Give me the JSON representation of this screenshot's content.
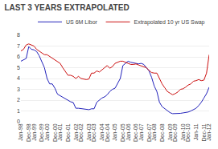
{
  "chart_data": {
    "type": "line",
    "title": "LAST 3 YEARS EXTRAPOLATED",
    "categories": [
      "Jan-98",
      null,
      null,
      "Dec-98",
      null,
      "Jan-99",
      null,
      null,
      "Dec-99",
      null,
      "Jan-00",
      null,
      null,
      "Dec-00",
      null,
      "Jan-01",
      null,
      null,
      "Dec-01",
      null,
      null,
      "Jan-02",
      null,
      "Dec-02",
      null,
      null,
      "Jan-03",
      null,
      "Dec-03",
      null,
      null,
      "Jan-04",
      null,
      "Dec-04",
      null,
      null,
      "Jan-05",
      null,
      null,
      "Dec-05",
      null,
      "Jan-06",
      null,
      null,
      "Dec-06",
      null,
      "Jan-07",
      null,
      null,
      "Dec-07",
      null,
      "Jan-08",
      null,
      null,
      "Dec-08",
      null,
      null,
      "Jan-09",
      null,
      "Dec-09",
      null,
      null,
      "Jan-10",
      null,
      "Dec-10",
      null,
      null,
      "Jan-11",
      null,
      null,
      "Dec-11",
      null,
      "Jan-12"
    ],
    "series": [
      {
        "name": "US 6M Libor",
        "color": "#2222bb",
        "values": [
          5.6,
          5.75,
          5.85,
          6.95,
          6.7,
          6.65,
          6.5,
          6.1,
          5.5,
          5.0,
          4.0,
          3.5,
          3.5,
          3.1,
          2.55,
          2.4,
          2.25,
          2.1,
          2.0,
          1.85,
          1.78,
          1.25,
          1.25,
          1.22,
          1.2,
          1.15,
          1.12,
          1.2,
          1.2,
          1.8,
          2.0,
          2.2,
          2.3,
          2.5,
          2.8,
          3.0,
          3.1,
          3.5,
          4.0,
          5.2,
          5.4,
          5.6,
          5.5,
          5.45,
          5.45,
          5.35,
          5.4,
          5.3,
          5.0,
          4.7,
          4.1,
          3.3,
          2.8,
          1.8,
          1.4,
          1.2,
          1.0,
          0.85,
          0.75,
          0.75,
          0.75,
          0.78,
          0.82,
          0.85,
          0.9,
          1.0,
          1.1,
          1.25,
          1.5,
          1.8,
          2.2,
          2.6,
          3.2
        ]
      },
      {
        "name": "Extrapolated 10 yr US Swap",
        "color": "#cc1111",
        "values": [
          6.55,
          6.7,
          7.1,
          7.2,
          7.1,
          7.0,
          6.7,
          6.55,
          6.4,
          6.2,
          6.2,
          6.05,
          5.9,
          5.7,
          5.6,
          5.4,
          5.0,
          4.6,
          4.3,
          4.3,
          4.2,
          4.0,
          4.2,
          4.0,
          3.95,
          3.9,
          3.95,
          4.5,
          4.5,
          4.7,
          4.6,
          4.8,
          5.0,
          5.2,
          4.95,
          5.1,
          5.4,
          5.5,
          5.6,
          5.6,
          5.5,
          5.4,
          5.3,
          5.3,
          5.35,
          5.25,
          5.15,
          5.1,
          5.0,
          4.75,
          4.55,
          4.5,
          4.5,
          4.0,
          3.5,
          3.15,
          2.8,
          2.65,
          2.5,
          2.6,
          2.75,
          3.0,
          3.05,
          3.2,
          3.4,
          3.5,
          3.75,
          3.8,
          3.9,
          3.8,
          3.85,
          4.5,
          6.2
        ]
      }
    ],
    "ylim": [
      0,
      8
    ],
    "yticks": [
      0,
      1,
      2,
      3,
      4,
      5,
      6,
      7,
      8
    ],
    "grid": true,
    "legend": "top right"
  }
}
